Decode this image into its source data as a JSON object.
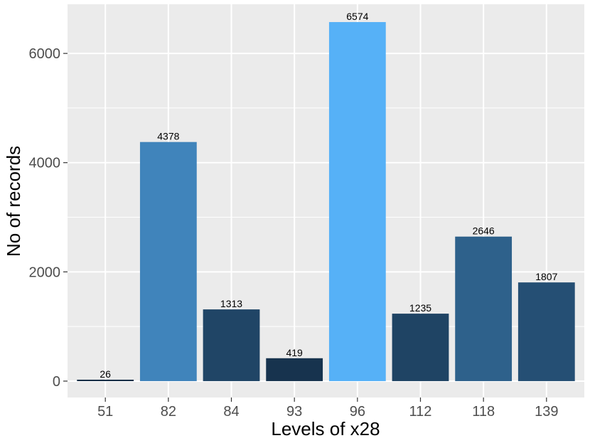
{
  "chart_data": {
    "type": "bar",
    "categories": [
      "51",
      "82",
      "84",
      "93",
      "96",
      "112",
      "118",
      "139"
    ],
    "values": [
      26,
      4378,
      1313,
      419,
      6574,
      1235,
      2646,
      1807
    ],
    "data_labels": [
      "26",
      "4378",
      "1313",
      "419",
      "6574",
      "1235",
      "2646",
      "1807"
    ],
    "xlabel": "Levels of x28",
    "ylabel": "No of records",
    "ylim": [
      -300,
      6900
    ],
    "yticks": [
      0,
      2000,
      4000,
      6000
    ],
    "ytick_labels": [
      "0",
      "2000",
      "4000",
      "6000"
    ],
    "grid": true,
    "legend": "none",
    "colors": {
      "panel_background": "#ebebeb",
      "grid": "#ffffff",
      "bar_low": "#132b43",
      "bar_high": "#56b1f7"
    }
  }
}
